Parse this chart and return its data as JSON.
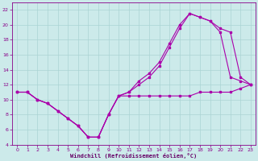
{
  "xlabel": "Windchill (Refroidissement éolien,°C)",
  "background_color": "#cceaea",
  "grid_color": "#aad4d4",
  "line_color": "#aa00aa",
  "xlim": [
    -0.5,
    23.5
  ],
  "ylim": [
    4,
    23
  ],
  "xticks": [
    0,
    1,
    2,
    3,
    4,
    5,
    6,
    7,
    8,
    9,
    10,
    11,
    12,
    13,
    14,
    15,
    16,
    17,
    18,
    19,
    20,
    21,
    22,
    23
  ],
  "yticks": [
    4,
    6,
    8,
    10,
    12,
    14,
    16,
    18,
    20,
    22
  ],
  "series1_x": [
    0,
    1,
    2,
    3,
    4,
    5,
    6,
    7,
    8,
    9,
    10,
    11,
    12,
    13,
    14,
    15,
    16,
    17,
    18,
    19,
    20,
    21,
    22,
    23
  ],
  "series1_y": [
    11,
    11,
    10,
    9.5,
    8.5,
    7.5,
    6.5,
    5,
    5,
    8,
    10.5,
    10.5,
    10.5,
    10.5,
    10.5,
    10.5,
    10.5,
    10.5,
    11,
    11,
    11,
    11,
    11.5,
    12
  ],
  "series2_x": [
    0,
    1,
    2,
    3,
    4,
    5,
    6,
    7,
    8,
    9,
    10,
    11,
    12,
    13,
    14,
    15,
    16,
    17,
    18,
    19,
    20,
    21,
    22,
    23
  ],
  "series2_y": [
    11,
    11,
    10,
    9.5,
    8.5,
    7.5,
    6.5,
    5,
    5,
    8,
    10.5,
    11,
    12,
    13,
    14.5,
    17,
    19.5,
    21.5,
    21,
    20.5,
    19,
    13,
    12.5,
    12
  ],
  "series3_x": [
    0,
    1,
    2,
    3,
    4,
    5,
    6,
    7,
    8,
    9,
    10,
    11,
    12,
    13,
    14,
    15,
    16,
    17,
    18,
    19,
    20,
    21,
    22,
    23
  ],
  "series3_y": [
    11,
    11,
    10,
    9.5,
    8.5,
    7.5,
    6.5,
    5,
    5,
    8,
    10.5,
    11,
    12.5,
    13.5,
    15,
    17.5,
    20,
    21.5,
    21,
    20.5,
    19.5,
    19,
    13,
    12
  ]
}
